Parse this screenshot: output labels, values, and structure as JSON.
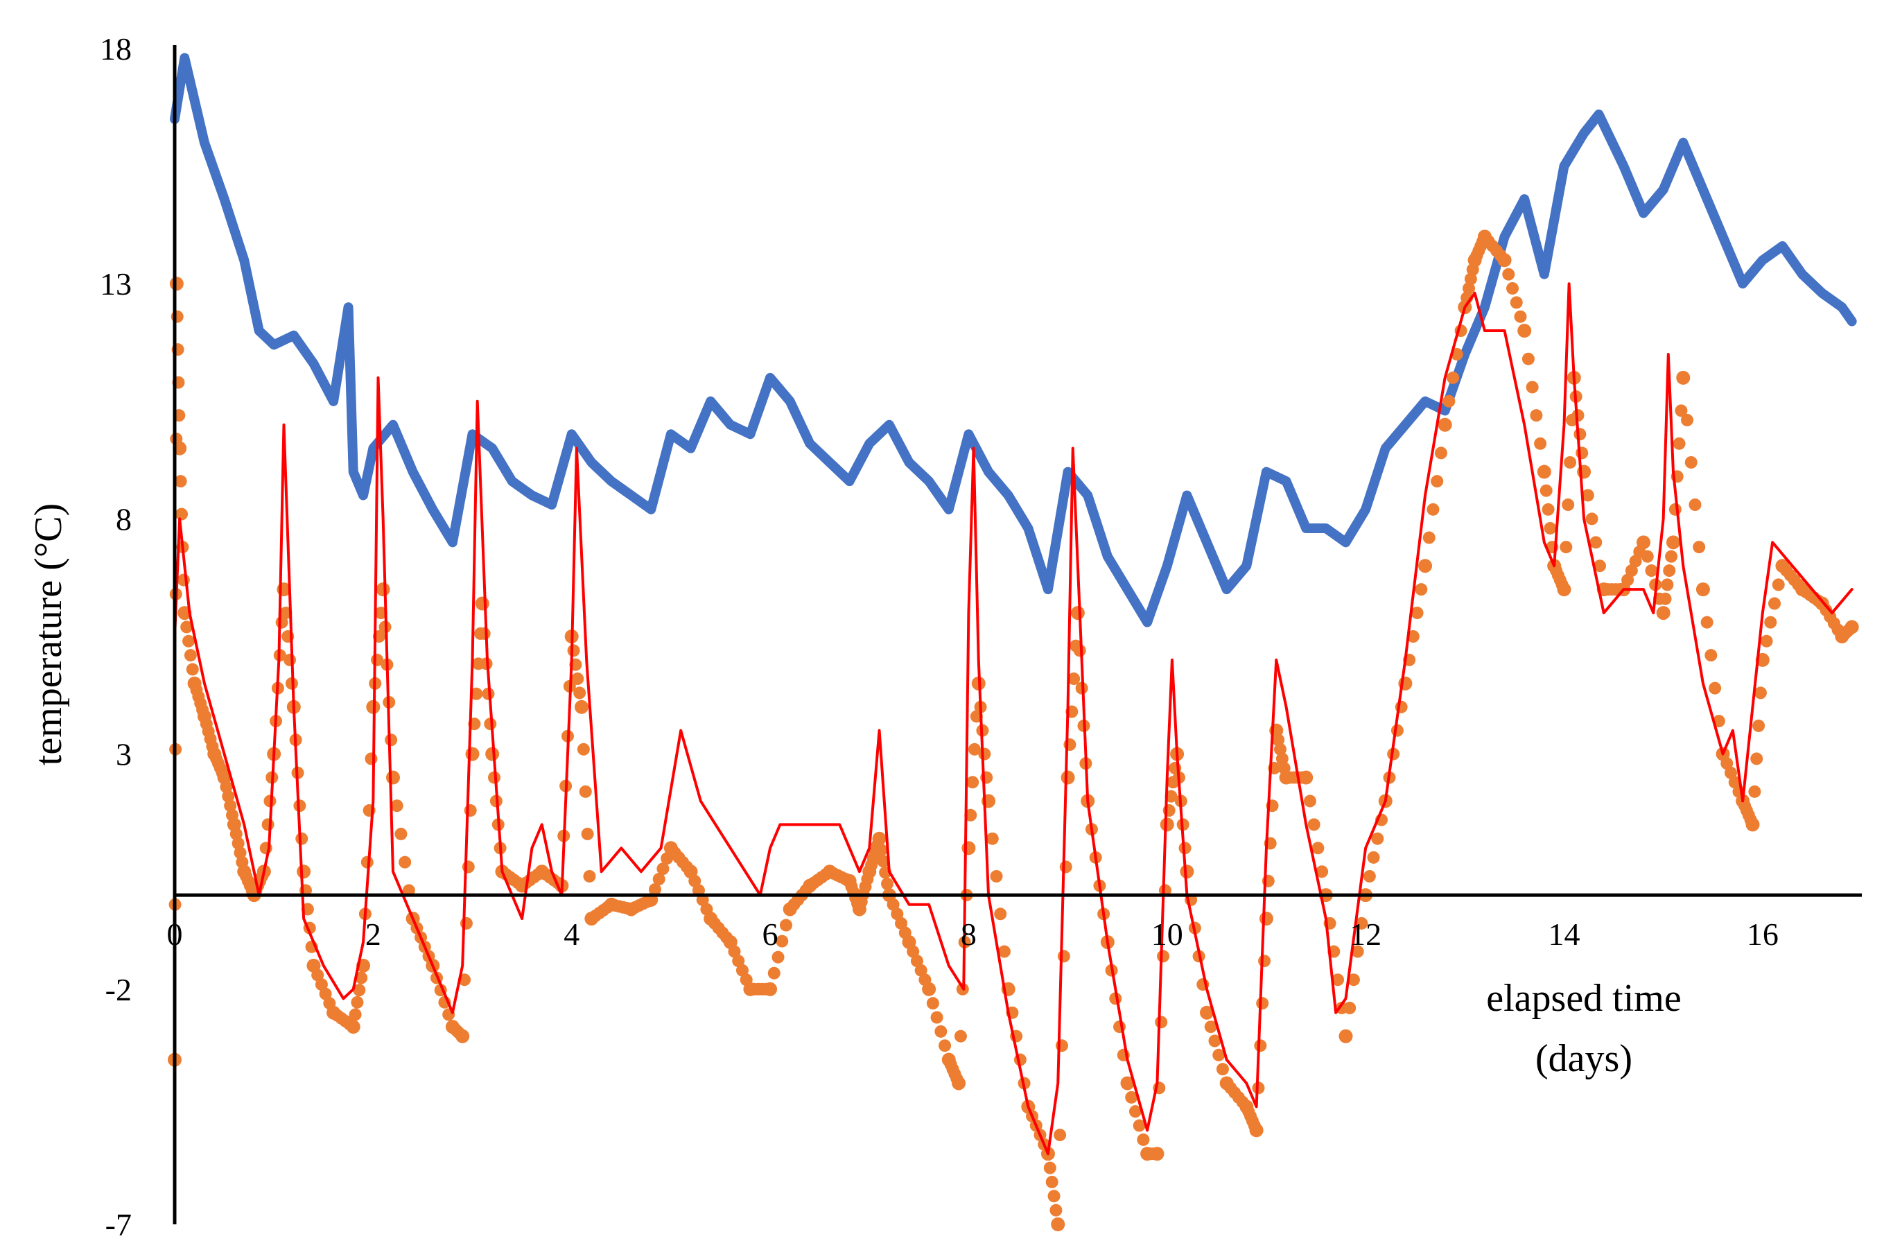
{
  "chart_data": {
    "type": "line",
    "title": "",
    "xlabel": "elapsed time",
    "xlabel_unit": "(days)",
    "ylabel": "temperature (°C)",
    "xlim": [
      0,
      17
    ],
    "ylim": [
      -7,
      18
    ],
    "x_ticks": [
      0,
      2,
      4,
      6,
      8,
      10,
      12,
      14,
      16
    ],
    "y_ticks": [
      -7,
      -2,
      3,
      8,
      13,
      18
    ],
    "grid": false,
    "legend": "none",
    "series": [
      {
        "style": "thick-line",
        "color": "#4472C4",
        "x": [
          0,
          0.1,
          0.3,
          0.5,
          0.7,
          0.85,
          1.0,
          1.2,
          1.4,
          1.6,
          1.75,
          1.8,
          1.9,
          2.0,
          2.2,
          2.4,
          2.6,
          2.8,
          3.0,
          3.2,
          3.4,
          3.6,
          3.8,
          4.0,
          4.2,
          4.4,
          4.6,
          4.8,
          5.0,
          5.2,
          5.4,
          5.6,
          5.8,
          6.0,
          6.2,
          6.4,
          6.6,
          6.8,
          7.0,
          7.2,
          7.4,
          7.6,
          7.8,
          8.0,
          8.2,
          8.4,
          8.6,
          8.8,
          9.0,
          9.2,
          9.4,
          9.6,
          9.8,
          10.0,
          10.2,
          10.4,
          10.6,
          10.8,
          11.0,
          11.2,
          11.4,
          11.6,
          11.8,
          12.0,
          12.2,
          12.4,
          12.6,
          12.8,
          13.0,
          13.2,
          13.4,
          13.6,
          13.8,
          14.0,
          14.2,
          14.35,
          14.6,
          14.8,
          15.0,
          15.2,
          15.4,
          15.6,
          15.8,
          16.0,
          16.2,
          16.4,
          16.6,
          16.8,
          16.9
        ],
        "values": [
          16.5,
          17.8,
          16.0,
          14.8,
          13.5,
          12.0,
          11.7,
          11.9,
          11.3,
          10.5,
          12.5,
          9.0,
          8.5,
          9.5,
          10.0,
          9.0,
          8.2,
          7.5,
          9.8,
          9.5,
          8.8,
          8.5,
          8.3,
          9.8,
          9.2,
          8.8,
          8.5,
          8.2,
          9.8,
          9.5,
          10.5,
          10.0,
          9.8,
          11.0,
          10.5,
          9.6,
          9.2,
          8.8,
          9.6,
          10.0,
          9.2,
          8.8,
          8.2,
          9.8,
          9.0,
          8.5,
          7.8,
          6.5,
          9.0,
          8.5,
          7.2,
          6.5,
          5.8,
          7.0,
          8.5,
          7.5,
          6.5,
          7.0,
          9.0,
          8.8,
          7.8,
          7.8,
          7.5,
          8.2,
          9.5,
          10.0,
          10.5,
          10.3,
          11.5,
          12.5,
          14.0,
          14.8,
          13.2,
          15.5,
          16.2,
          16.6,
          15.5,
          14.5,
          15.0,
          16.0,
          15.0,
          14.0,
          13.0,
          13.5,
          13.8,
          13.2,
          12.8,
          12.5,
          12.2
        ]
      },
      {
        "style": "dots",
        "color": "#ED7D31",
        "x": [
          0,
          0.02,
          0.05,
          0.1,
          0.2,
          0.3,
          0.4,
          0.5,
          0.6,
          0.7,
          0.8,
          0.9,
          1.0,
          1.1,
          1.2,
          1.3,
          1.4,
          1.6,
          1.8,
          1.9,
          2.0,
          2.1,
          2.2,
          2.4,
          2.6,
          2.8,
          2.9,
          3.0,
          3.1,
          3.2,
          3.3,
          3.5,
          3.7,
          3.9,
          4.0,
          4.1,
          4.2,
          4.4,
          4.6,
          4.8,
          5.0,
          5.2,
          5.4,
          5.6,
          5.8,
          6.0,
          6.2,
          6.4,
          6.6,
          6.8,
          6.9,
          7.0,
          7.1,
          7.2,
          7.4,
          7.6,
          7.8,
          7.9,
          8.0,
          8.1,
          8.2,
          8.4,
          8.6,
          8.8,
          8.9,
          9.0,
          9.1,
          9.2,
          9.4,
          9.6,
          9.8,
          9.9,
          10.0,
          10.1,
          10.2,
          10.4,
          10.6,
          10.8,
          10.9,
          11.0,
          11.1,
          11.2,
          11.4,
          11.6,
          11.8,
          12.0,
          12.2,
          12.4,
          12.6,
          12.8,
          13.0,
          13.1,
          13.2,
          13.4,
          13.6,
          13.8,
          13.9,
          14.0,
          14.1,
          14.2,
          14.4,
          14.6,
          14.8,
          15.0,
          15.1,
          15.2,
          15.4,
          15.6,
          15.8,
          15.9,
          16.0,
          16.2,
          16.4,
          16.6,
          16.8,
          16.9
        ],
        "values": [
          -3.5,
          13.0,
          9.5,
          6.0,
          4.5,
          3.8,
          3.0,
          2.5,
          1.5,
          0.5,
          0,
          0.5,
          3.0,
          6.5,
          4.0,
          0.5,
          -1.5,
          -2.5,
          -2.8,
          -1.5,
          4.0,
          6.5,
          2.5,
          -0.5,
          -1.5,
          -2.8,
          -3.0,
          3.0,
          6.2,
          3.0,
          0.5,
          0.2,
          0.5,
          0.2,
          5.5,
          4.0,
          -0.5,
          -0.2,
          -0.3,
          -0.1,
          1.0,
          0.5,
          -0.5,
          -1.0,
          -2.0,
          -2.0,
          -0.3,
          0.2,
          0.5,
          0.3,
          -0.3,
          0.5,
          1.2,
          0,
          -1.0,
          -2.0,
          -3.5,
          -4.0,
          1.0,
          4.5,
          2.0,
          -2.0,
          -4.5,
          -5.5,
          -7.0,
          2.5,
          6.0,
          2.0,
          -1.0,
          -4.0,
          -5.5,
          -5.5,
          1.5,
          3.0,
          0.5,
          -2.5,
          -4.0,
          -4.5,
          -5.0,
          -0.5,
          3.5,
          2.5,
          2.5,
          0,
          -3.0,
          0,
          2.0,
          4.5,
          7.0,
          10.0,
          12.5,
          13.5,
          14.0,
          13.5,
          12.0,
          9.0,
          7.0,
          6.5,
          11.0,
          9.0,
          6.5,
          6.5,
          7.5,
          6.0,
          7.5,
          11.0,
          6.5,
          3.0,
          2.0,
          1.5,
          5.0,
          7.0,
          6.5,
          6.2,
          5.5,
          5.7
        ]
      },
      {
        "style": "thin-line",
        "color": "#FF0000",
        "x": [
          0,
          0.05,
          0.15,
          0.3,
          0.5,
          0.7,
          0.85,
          0.95,
          1.05,
          1.1,
          1.2,
          1.3,
          1.5,
          1.7,
          1.8,
          1.9,
          2.0,
          2.05,
          2.1,
          2.2,
          2.3,
          2.4,
          2.5,
          2.6,
          2.8,
          2.9,
          3.0,
          3.05,
          3.15,
          3.3,
          3.5,
          3.6,
          3.7,
          3.8,
          3.9,
          4.0,
          4.05,
          4.15,
          4.3,
          4.5,
          4.7,
          4.9,
          5.1,
          5.3,
          5.6,
          5.9,
          6.0,
          6.1,
          6.3,
          6.5,
          6.7,
          6.9,
          7.0,
          7.1,
          7.2,
          7.4,
          7.6,
          7.8,
          7.95,
          8.0,
          8.05,
          8.1,
          8.2,
          8.4,
          8.6,
          8.8,
          8.9,
          9.0,
          9.05,
          9.1,
          9.2,
          9.4,
          9.6,
          9.8,
          9.9,
          10.0,
          10.05,
          10.1,
          10.2,
          10.4,
          10.6,
          10.8,
          10.9,
          11.0,
          11.1,
          11.2,
          11.4,
          11.6,
          11.7,
          11.8,
          12.0,
          12.2,
          12.4,
          12.6,
          12.8,
          13.0,
          13.1,
          13.2,
          13.4,
          13.6,
          13.8,
          13.9,
          14.0,
          14.05,
          14.1,
          14.2,
          14.4,
          14.6,
          14.8,
          14.9,
          15.0,
          15.05,
          15.1,
          15.2,
          15.4,
          15.6,
          15.7,
          15.8,
          15.9,
          16.0,
          16.1,
          16.3,
          16.5,
          16.7,
          16.9
        ],
        "values": [
          5.5,
          8.0,
          6.0,
          4.5,
          3.0,
          1.5,
          0,
          1.0,
          5.0,
          10.0,
          4.0,
          -0.5,
          -1.5,
          -2.2,
          -2.0,
          -1.0,
          2.0,
          11.0,
          8.0,
          0.5,
          0,
          -0.5,
          -1.0,
          -1.5,
          -2.5,
          -1.5,
          5.0,
          10.5,
          5.0,
          0.5,
          -0.5,
          1.0,
          1.5,
          0.5,
          0,
          5.0,
          9.5,
          5.0,
          0.5,
          1.0,
          0.5,
          1.0,
          3.5,
          2.0,
          1.0,
          0,
          1.0,
          1.5,
          1.5,
          1.5,
          1.5,
          0.5,
          1.0,
          3.5,
          0.5,
          -0.2,
          -0.2,
          -1.5,
          -2.0,
          6.0,
          9.5,
          5.0,
          0,
          -2.5,
          -4.5,
          -5.5,
          -4.0,
          4.0,
          9.5,
          7.0,
          2.0,
          -1.0,
          -3.5,
          -5.0,
          -4.0,
          2.5,
          5.0,
          3.0,
          0,
          -2.0,
          -3.5,
          -4.0,
          -4.5,
          1.0,
          5.0,
          4.0,
          1.5,
          -0.5,
          -2.5,
          -2.2,
          1.0,
          2.0,
          5.0,
          8.5,
          11.0,
          12.5,
          12.8,
          12.0,
          12.0,
          10.0,
          7.5,
          7.0,
          10.0,
          13.0,
          11.0,
          8.0,
          6.0,
          6.5,
          6.5,
          6.0,
          8.0,
          11.5,
          9.0,
          7.0,
          4.5,
          3.0,
          3.5,
          2.0,
          4.0,
          6.0,
          7.5,
          7.0,
          6.5,
          6.0,
          6.5
        ]
      }
    ]
  }
}
